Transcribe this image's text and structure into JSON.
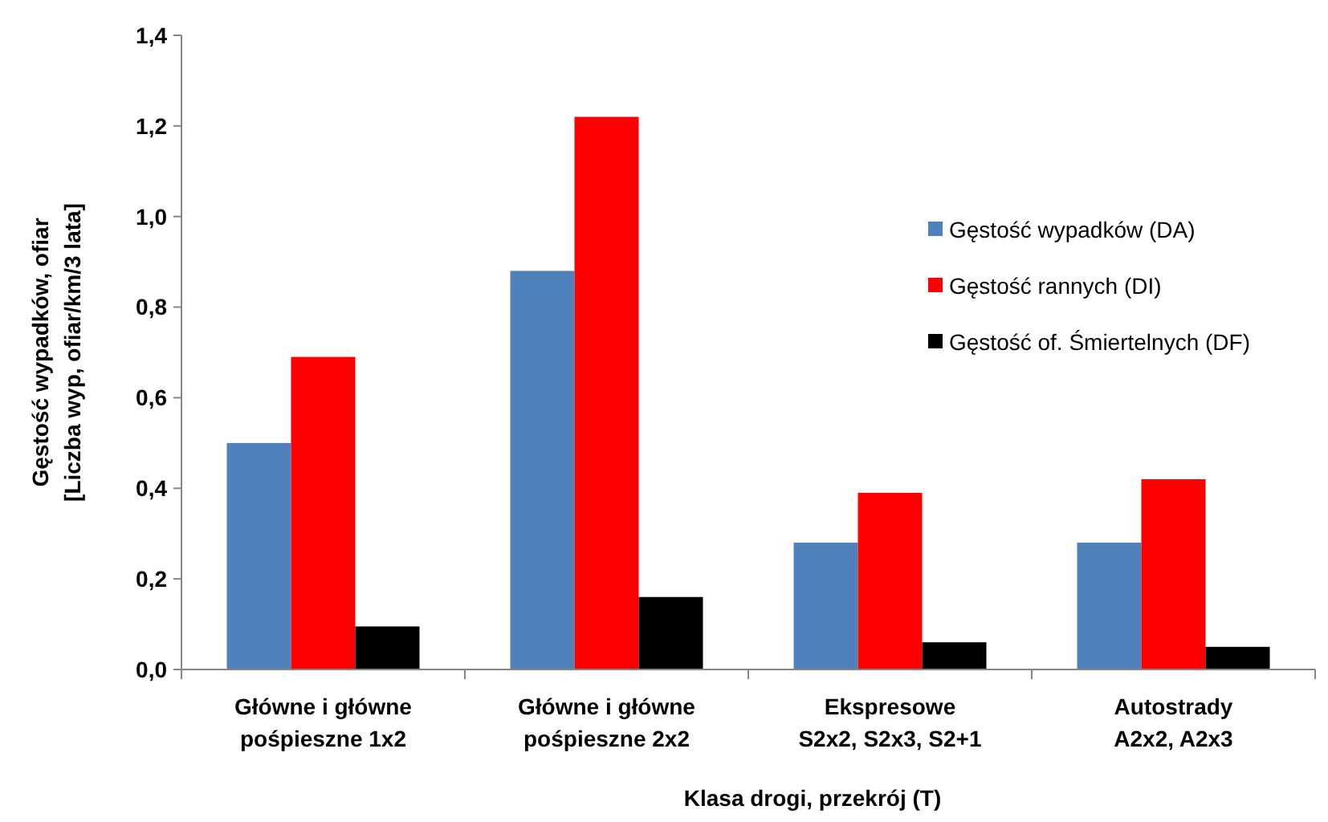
{
  "chart_data": {
    "type": "bar",
    "xlabel": "Klasa drogi, przekrój (T)",
    "ylabel": "Gęstość wypadków, ofiar\n[Liczba wyp, ofiar/km/3 lata]",
    "categories": [
      "Główne i główne\npośpieszne 1x2",
      "Główne i główne\npośpieszne 2x2",
      "Ekspresowe\nS2x2, S2x3, S2+1",
      "Autostrady\nA2x2, A2x3"
    ],
    "series": [
      {
        "name": "Gęstość wypadków (DA)",
        "color": "#4f81bd",
        "values": [
          0.5,
          0.88,
          0.28,
          0.28
        ]
      },
      {
        "name": "Gęstość rannych (DI)",
        "color": "#ff0000",
        "values": [
          0.69,
          1.22,
          0.39,
          0.42
        ]
      },
      {
        "name": "Gęstość of. Śmiertelnych (DF)",
        "color": "#000000",
        "values": [
          0.095,
          0.16,
          0.06,
          0.05
        ]
      }
    ],
    "ylim": [
      0,
      1.4
    ],
    "yticks": [
      {
        "value": 0,
        "label": "0,0"
      },
      {
        "value": 0.2,
        "label": "0,2"
      },
      {
        "value": 0.4,
        "label": "0,4"
      },
      {
        "value": 0.6,
        "label": "0,6"
      },
      {
        "value": 0.8,
        "label": "0,8"
      },
      {
        "value": 1,
        "label": "1,0"
      },
      {
        "value": 1.2,
        "label": "1,2"
      },
      {
        "value": 1.4,
        "label": "1,4"
      }
    ],
    "grid": false,
    "legend": "right"
  }
}
